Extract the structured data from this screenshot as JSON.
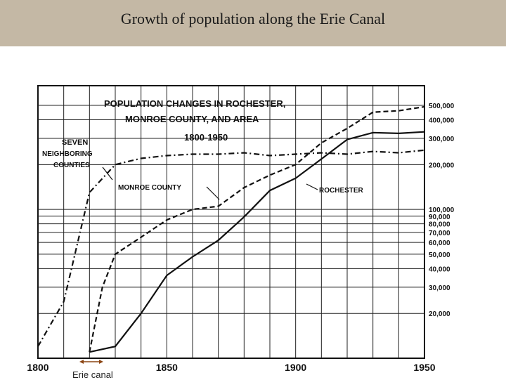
{
  "header": {
    "title": "Growth of population along the Erie Canal"
  },
  "caption": {
    "text": "Erie canal"
  },
  "chart_data": {
    "type": "line",
    "title": "POPULATION CHANGES IN ROCHESTER, MONROE COUNTY, AND AREA",
    "subtitle": "1800-1950",
    "xlabel": "",
    "ylabel": "",
    "y_scale": "log",
    "xlim": [
      1800,
      1950
    ],
    "ylim": [
      10000,
      500000
    ],
    "x_ticks": [
      1800,
      1850,
      1900,
      1950
    ],
    "x_tick_labels": [
      "1800",
      "1850",
      "1900",
      "1950"
    ],
    "y_ticks": [
      20000,
      30000,
      40000,
      50000,
      60000,
      70000,
      80000,
      90000,
      100000,
      200000,
      300000,
      400000,
      500000
    ],
    "y_tick_labels": [
      "20,000",
      "30,000",
      "40,000",
      "50,000",
      "60,000",
      "70,000",
      "80,000",
      "90,000",
      "100,000",
      "200,000",
      "300,000",
      "400,000",
      "500,000"
    ],
    "grid": true,
    "series": [
      {
        "name": "SEVEN NEIGHBORING COUNTIES",
        "style": "dashed",
        "x": [
          1800,
          1810,
          1820,
          1830,
          1840,
          1850,
          1860,
          1870,
          1880,
          1890,
          1900,
          1910,
          1920,
          1930,
          1940,
          1950
        ],
        "y": [
          12000,
          24000,
          130000,
          200000,
          220000,
          230000,
          235000,
          235000,
          240000,
          230000,
          235000,
          240000,
          235000,
          245000,
          240000,
          250000
        ]
      },
      {
        "name": "MONROE COUNTY",
        "style": "dashed",
        "x": [
          1820,
          1825,
          1830,
          1840,
          1850,
          1860,
          1870,
          1880,
          1890,
          1900,
          1910,
          1920,
          1930,
          1940,
          1950
        ],
        "y": [
          11000,
          30000,
          50000,
          65000,
          85000,
          100000,
          105000,
          140000,
          170000,
          200000,
          280000,
          350000,
          450000,
          460000,
          490000
        ]
      },
      {
        "name": "ROCHESTER",
        "style": "solid",
        "x": [
          1820,
          1830,
          1840,
          1850,
          1860,
          1870,
          1880,
          1890,
          1900,
          1910,
          1920,
          1930,
          1940,
          1950
        ],
        "y": [
          11000,
          12000,
          20000,
          36000,
          48000,
          62000,
          89000,
          134000,
          162000,
          218000,
          295000,
          328000,
          324000,
          332000
        ]
      }
    ],
    "annotations": [
      {
        "id": "seven-1",
        "text": "SEVEN"
      },
      {
        "id": "seven-2",
        "text": "NEIGHBORING"
      },
      {
        "id": "seven-3",
        "text": "COUNTIES"
      },
      {
        "id": "monroe",
        "text": "MONROE COUNTY"
      },
      {
        "id": "rochester",
        "text": "ROCHESTER"
      }
    ],
    "colors": {
      "ink": "#111111",
      "grid": "#222222"
    }
  }
}
